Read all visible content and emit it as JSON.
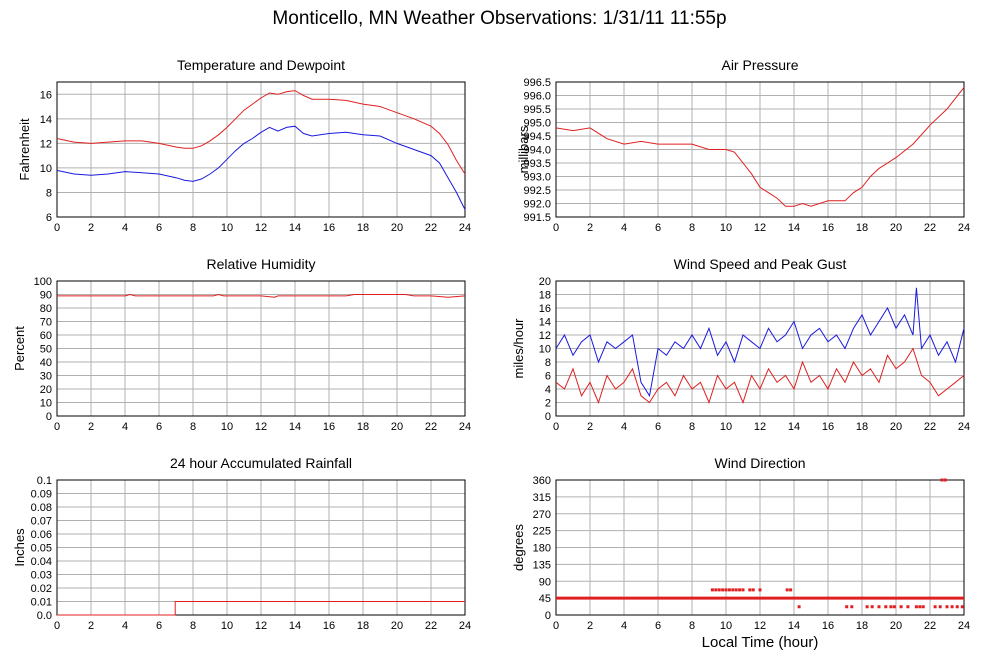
{
  "page": {
    "title": "Monticello, MN Weather Observations: 1/31/11 11:55p",
    "x_axis_label": "Local Time (hour)"
  },
  "colors": {
    "red": "#e02020",
    "blue": "#1a1ae0",
    "grid": "#b0b0b0",
    "axis": "#000000"
  },
  "chart_data": [
    {
      "id": "temp",
      "type": "line",
      "title": "Temperature and Dewpoint",
      "ylabel": "Fahrenheit",
      "xlim": [
        0,
        24
      ],
      "ylim": [
        6,
        17
      ],
      "xticks": [
        "0",
        "2",
        "4",
        "6",
        "8",
        "10",
        "12",
        "14",
        "16",
        "18",
        "20",
        "22",
        "24"
      ],
      "yticks": [
        "6",
        "8",
        "10",
        "12",
        "14",
        "16"
      ],
      "grid": true,
      "series": [
        {
          "color": "red",
          "x": [
            0,
            1,
            2,
            3,
            4,
            5,
            6,
            7,
            7.5,
            8,
            8.5,
            9,
            9.5,
            10,
            10.5,
            11,
            11.5,
            12,
            12.5,
            13,
            13.5,
            14,
            14.5,
            15,
            16,
            17,
            18,
            19,
            20,
            21,
            22,
            22.5,
            23,
            23.5,
            24
          ],
          "y": [
            12.4,
            12.1,
            12.0,
            12.1,
            12.2,
            12.2,
            12.0,
            11.7,
            11.6,
            11.6,
            11.8,
            12.2,
            12.7,
            13.3,
            14.0,
            14.7,
            15.2,
            15.7,
            16.1,
            16.0,
            16.2,
            16.3,
            15.9,
            15.6,
            15.6,
            15.5,
            15.2,
            15.0,
            14.5,
            14.0,
            13.4,
            12.8,
            11.9,
            10.6,
            9.5
          ]
        },
        {
          "color": "blue",
          "x": [
            0,
            1,
            2,
            3,
            4,
            5,
            6,
            7,
            7.5,
            8,
            8.5,
            9,
            9.5,
            10,
            10.5,
            11,
            11.5,
            12,
            12.5,
            13,
            13.5,
            14,
            14.5,
            15,
            16,
            17,
            18,
            19,
            20,
            21,
            22,
            22.5,
            23,
            23.5,
            24
          ],
          "y": [
            9.8,
            9.5,
            9.4,
            9.5,
            9.7,
            9.6,
            9.5,
            9.2,
            9.0,
            8.9,
            9.1,
            9.5,
            10.0,
            10.7,
            11.4,
            12.0,
            12.4,
            12.9,
            13.3,
            13.0,
            13.3,
            13.4,
            12.8,
            12.6,
            12.8,
            12.9,
            12.7,
            12.6,
            12.0,
            11.5,
            11.0,
            10.4,
            9.2,
            8.0,
            6.6
          ]
        }
      ]
    },
    {
      "id": "pressure",
      "type": "line",
      "title": "Air Pressure",
      "ylabel": "millibars",
      "xlim": [
        0,
        24
      ],
      "ylim": [
        991.5,
        996.5
      ],
      "xticks": [
        "0",
        "2",
        "4",
        "6",
        "8",
        "10",
        "12",
        "14",
        "16",
        "18",
        "20",
        "22",
        "24"
      ],
      "yticks": [
        "991.5",
        "992.0",
        "992.5",
        "993.0",
        "993.5",
        "994.0",
        "994.5",
        "995.0",
        "995.5",
        "996.0",
        "996.5"
      ],
      "grid": true,
      "series": [
        {
          "color": "red",
          "x": [
            0,
            1,
            2,
            3,
            4,
            5,
            6,
            7,
            8,
            9,
            10,
            10.5,
            11,
            11.5,
            12,
            12.5,
            13,
            13.5,
            14,
            14.5,
            15,
            16,
            17,
            17.5,
            18,
            18.5,
            19,
            20,
            21,
            22,
            23,
            24
          ],
          "y": [
            994.8,
            994.7,
            994.8,
            994.4,
            994.2,
            994.3,
            994.2,
            994.2,
            994.2,
            994.0,
            994.0,
            993.9,
            993.5,
            993.1,
            992.6,
            992.4,
            992.2,
            991.9,
            991.9,
            992.0,
            991.9,
            992.1,
            992.1,
            992.4,
            992.6,
            993.0,
            993.3,
            993.7,
            994.2,
            994.9,
            995.5,
            996.3
          ]
        }
      ]
    },
    {
      "id": "humidity",
      "type": "line",
      "title": "Relative Humidity",
      "ylabel": "Percent",
      "xlim": [
        0,
        24
      ],
      "ylim": [
        0,
        100
      ],
      "xticks": [
        "0",
        "2",
        "4",
        "6",
        "8",
        "10",
        "12",
        "14",
        "16",
        "18",
        "20",
        "22",
        "24"
      ],
      "yticks": [
        "0",
        "10",
        "20",
        "30",
        "40",
        "50",
        "60",
        "70",
        "80",
        "90",
        "100"
      ],
      "grid": true,
      "series": [
        {
          "color": "red",
          "x": [
            0,
            2,
            4,
            4.3,
            4.6,
            6,
            8,
            9.2,
            9.5,
            9.8,
            12,
            12.8,
            13,
            14,
            16,
            17,
            17.5,
            18,
            20,
            20.5,
            21,
            22,
            23,
            24
          ],
          "y": [
            89,
            89,
            89,
            90,
            89,
            89,
            89,
            89,
            90,
            89,
            89,
            88,
            89,
            89,
            89,
            89,
            90,
            90,
            90,
            90,
            89,
            89,
            88,
            89
          ]
        }
      ]
    },
    {
      "id": "wind",
      "type": "line",
      "title": "Wind Speed and Peak Gust",
      "ylabel": "miles/hour",
      "xlim": [
        0,
        24
      ],
      "ylim": [
        0,
        20
      ],
      "xticks": [
        "0",
        "2",
        "4",
        "6",
        "8",
        "10",
        "12",
        "14",
        "16",
        "18",
        "20",
        "22",
        "24"
      ],
      "yticks": [
        "0",
        "2",
        "4",
        "6",
        "8",
        "10",
        "12",
        "14",
        "16",
        "18",
        "20"
      ],
      "grid": true,
      "series": [
        {
          "color": "blue",
          "x": [
            0,
            0.5,
            1,
            1.5,
            2,
            2.5,
            3,
            3.5,
            4,
            4.5,
            5,
            5.5,
            6,
            6.5,
            7,
            7.5,
            8,
            8.5,
            9,
            9.5,
            10,
            10.5,
            11,
            11.5,
            12,
            12.5,
            13,
            13.5,
            14,
            14.5,
            15,
            15.5,
            16,
            16.5,
            17,
            17.5,
            18,
            18.5,
            19,
            19.5,
            20,
            20.5,
            21,
            21.2,
            21.5,
            22,
            22.5,
            23,
            23.5,
            24
          ],
          "y": [
            10,
            12,
            9,
            11,
            12,
            8,
            11,
            10,
            11,
            12,
            5,
            3,
            10,
            9,
            11,
            10,
            12,
            10,
            13,
            9,
            11,
            8,
            12,
            11,
            10,
            13,
            11,
            12,
            14,
            10,
            12,
            13,
            11,
            12,
            10,
            13,
            15,
            12,
            14,
            16,
            13,
            15,
            12,
            19,
            10,
            12,
            9,
            11,
            8,
            13
          ]
        },
        {
          "color": "red",
          "x": [
            0,
            0.5,
            1,
            1.5,
            2,
            2.5,
            3,
            3.5,
            4,
            4.5,
            5,
            5.5,
            6,
            6.5,
            7,
            7.5,
            8,
            8.5,
            9,
            9.5,
            10,
            10.5,
            11,
            11.5,
            12,
            12.5,
            13,
            13.5,
            14,
            14.5,
            15,
            15.5,
            16,
            16.5,
            17,
            17.5,
            18,
            18.5,
            19,
            19.5,
            20,
            20.5,
            21,
            21.5,
            22,
            22.5,
            23,
            23.5,
            24
          ],
          "y": [
            5,
            4,
            7,
            3,
            5,
            2,
            6,
            4,
            5,
            7,
            3,
            2,
            4,
            5,
            3,
            6,
            4,
            5,
            2,
            6,
            4,
            5,
            2,
            6,
            4,
            7,
            5,
            6,
            4,
            8,
            5,
            6,
            4,
            7,
            5,
            8,
            6,
            7,
            5,
            9,
            7,
            8,
            10,
            6,
            5,
            3,
            4,
            5,
            6
          ]
        }
      ]
    },
    {
      "id": "rain",
      "type": "line",
      "title": "24 hour Accumulated Rainfall",
      "ylabel": "Inches",
      "xlim": [
        0,
        24
      ],
      "ylim": [
        0,
        0.1
      ],
      "xticks": [
        "0",
        "2",
        "4",
        "6",
        "8",
        "10",
        "12",
        "14",
        "16",
        "18",
        "20",
        "22",
        "24"
      ],
      "yticks": [
        "0.0",
        "0.01",
        "0.02",
        "0.03",
        "0.04",
        "0.05",
        "0.06",
        "0.07",
        "0.08",
        "0.09",
        "0.1"
      ],
      "grid": true,
      "series": [
        {
          "color": "red",
          "x": [
            0,
            6.95,
            6.95,
            24
          ],
          "y": [
            0,
            0,
            0.01,
            0.01
          ]
        }
      ]
    },
    {
      "id": "direction",
      "type": "scatter",
      "title": "Wind Direction",
      "ylabel": "degrees",
      "xlim": [
        0,
        24
      ],
      "ylim": [
        0,
        360
      ],
      "xticks": [
        "0",
        "2",
        "4",
        "6",
        "8",
        "10",
        "12",
        "14",
        "16",
        "18",
        "20",
        "22",
        "24"
      ],
      "yticks": [
        "0",
        "45",
        "90",
        "135",
        "180",
        "225",
        "270",
        "315",
        "360"
      ],
      "grid": true,
      "series": [
        {
          "color": "red",
          "kind": "band",
          "x": [
            0,
            24
          ],
          "y": [
            45,
            45
          ]
        },
        {
          "color": "red",
          "kind": "points",
          "x": [
            9.2,
            9.4,
            9.6,
            9.8,
            10.0,
            10.2,
            10.4,
            10.6,
            10.8,
            11.0,
            11.4,
            11.6,
            12.0,
            13.6,
            13.8,
            14.3,
            17.1,
            17.4,
            18.3,
            18.6,
            19.0,
            19.4,
            19.7,
            19.9,
            20.3,
            20.7,
            21.2,
            21.4,
            21.6,
            22.3,
            22.6,
            23.0,
            23.3,
            23.6,
            23.9,
            22.7,
            22.9
          ],
          "y": [
            67,
            67,
            67,
            67,
            67,
            67,
            67,
            67,
            67,
            67,
            67,
            67,
            67,
            67,
            67,
            22,
            22,
            22,
            22,
            22,
            22,
            22,
            22,
            22,
            22,
            22,
            22,
            22,
            22,
            22,
            22,
            22,
            22,
            22,
            22,
            360,
            360
          ]
        }
      ]
    }
  ]
}
